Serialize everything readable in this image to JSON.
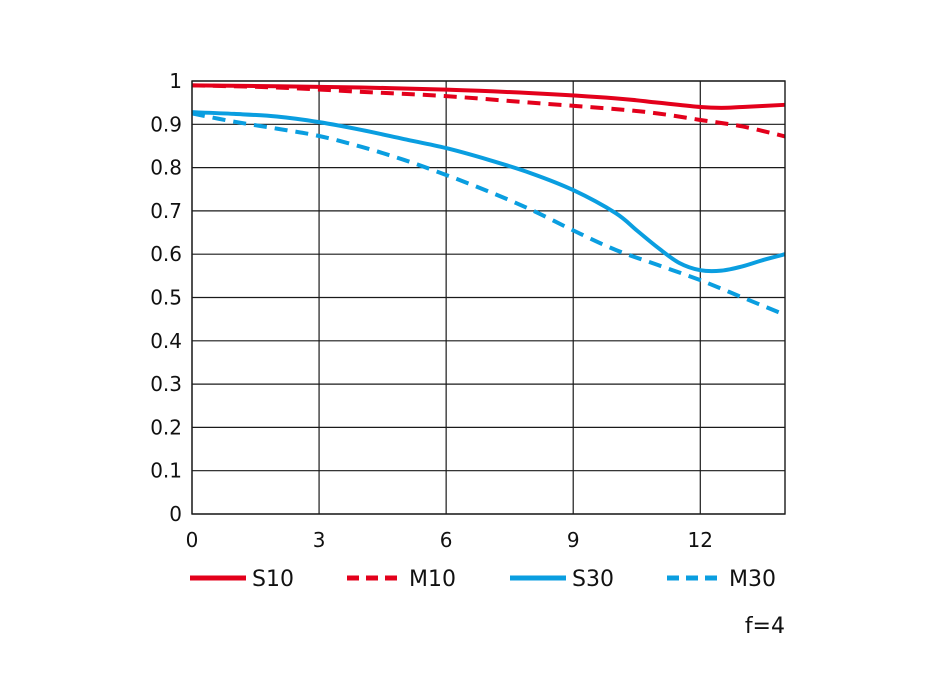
{
  "chart_data": {
    "type": "line",
    "title": "",
    "xlabel": "",
    "ylabel": "",
    "xlim": [
      0,
      14
    ],
    "ylim": [
      0,
      1
    ],
    "x_ticks": [
      0,
      3,
      6,
      9,
      12
    ],
    "y_ticks": [
      0,
      0.1,
      0.2,
      0.3,
      0.4,
      0.5,
      0.6,
      0.7,
      0.8,
      0.9,
      1
    ],
    "y_tick_labels": [
      "0",
      "0.1",
      "0.2",
      "0.3",
      "0.4",
      "0.5",
      "0.6",
      "0.7",
      "0.8",
      "0.9",
      "1"
    ],
    "grid": true,
    "legend_position": "bottom",
    "annotation": "f=4",
    "series": [
      {
        "name": "S10",
        "color": "#e3001b",
        "dash": "solid",
        "points": [
          [
            0,
            0.99
          ],
          [
            2,
            0.988
          ],
          [
            4,
            0.985
          ],
          [
            6,
            0.98
          ],
          [
            8,
            0.972
          ],
          [
            10,
            0.96
          ],
          [
            11,
            0.95
          ],
          [
            12,
            0.94
          ],
          [
            12.5,
            0.938
          ],
          [
            13,
            0.94
          ],
          [
            14,
            0.945
          ]
        ]
      },
      {
        "name": "M10",
        "color": "#e3001b",
        "dash": "dashed",
        "points": [
          [
            0,
            0.99
          ],
          [
            2,
            0.985
          ],
          [
            4,
            0.975
          ],
          [
            6,
            0.965
          ],
          [
            8,
            0.95
          ],
          [
            10,
            0.935
          ],
          [
            11,
            0.925
          ],
          [
            12,
            0.91
          ],
          [
            13,
            0.895
          ],
          [
            14,
            0.872
          ]
        ]
      },
      {
        "name": "S30",
        "color": "#0a9ee0",
        "dash": "solid",
        "points": [
          [
            0,
            0.928
          ],
          [
            1,
            0.924
          ],
          [
            2,
            0.918
          ],
          [
            3,
            0.905
          ],
          [
            4,
            0.887
          ],
          [
            5,
            0.866
          ],
          [
            6,
            0.845
          ],
          [
            7,
            0.818
          ],
          [
            8,
            0.787
          ],
          [
            9,
            0.748
          ],
          [
            10,
            0.695
          ],
          [
            10.5,
            0.655
          ],
          [
            11,
            0.615
          ],
          [
            11.5,
            0.58
          ],
          [
            12,
            0.563
          ],
          [
            12.5,
            0.562
          ],
          [
            13,
            0.572
          ],
          [
            13.5,
            0.587
          ],
          [
            14,
            0.6
          ]
        ]
      },
      {
        "name": "M30",
        "color": "#0a9ee0",
        "dash": "dashed",
        "points": [
          [
            0,
            0.925
          ],
          [
            1,
            0.906
          ],
          [
            2,
            0.89
          ],
          [
            3,
            0.873
          ],
          [
            4,
            0.848
          ],
          [
            5,
            0.818
          ],
          [
            6,
            0.783
          ],
          [
            7,
            0.745
          ],
          [
            8,
            0.703
          ],
          [
            9,
            0.655
          ],
          [
            10,
            0.61
          ],
          [
            11,
            0.575
          ],
          [
            12,
            0.54
          ],
          [
            13,
            0.5
          ],
          [
            14,
            0.46
          ]
        ]
      }
    ]
  }
}
